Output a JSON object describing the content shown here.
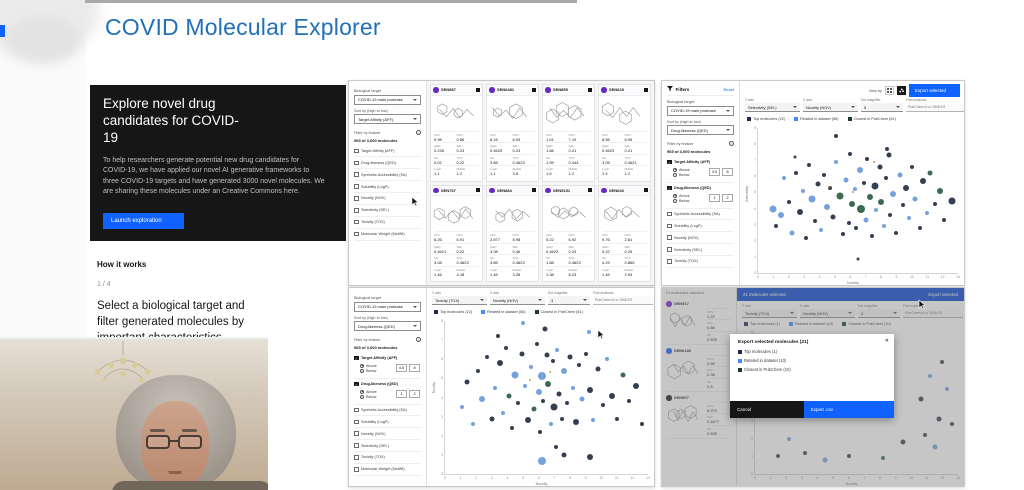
{
  "page": {
    "title": "COVID Molecular Explorer"
  },
  "hero": {
    "heading": "Explore novel drug candidates for COVID-19",
    "body": "To help researchers generate potential new drug candidates for COVID-19, we have applied our novel AI generative frameworks to three COVID-19 targets and have generated 3000 novel molecules. We are sharing these molecules under an Creative Commons here.",
    "button": "Launch exploration"
  },
  "how": {
    "title": "How it works",
    "step": "1 / 4",
    "text": "Select a biological target and filter generated molecules by important characteristics"
  },
  "labels": {
    "bio_target": "Biological target",
    "sort": "Sort by (high to low)",
    "filter_feature": "Filter by feature",
    "count": "965 of 3,000 molecules",
    "above": "Above",
    "below": "Below",
    "filters": "Filters",
    "reset": "Reset",
    "view_by": "View by",
    "export_selected": "Export selected",
    "y_axis": "Y axis",
    "x_axis": "X axis",
    "dot_mag": "Dot magnifier",
    "find": "Find molecule",
    "find_placeholder": "PubChem id or SMILES"
  },
  "stat_labels": [
    "AFF",
    "NOV",
    "QED",
    "SEL",
    "SA",
    "TOX",
    "LogP",
    "MolWt"
  ],
  "colors": {
    "accent": "#0f62fe",
    "title_blue": "#2170b9",
    "purple": "#6929c4",
    "bar_blue": "#0043ce"
  },
  "panelA": {
    "bio_value": "COVID-19 main protease",
    "sort_value": "Target Affinity (AFF)",
    "filters": [
      "Target Affinity (AFF)",
      "Drug-likeness (QED)",
      "Synthetic Accessibility (SA)",
      "Solubility (LogP)",
      "Novelty (NOV)",
      "Selectivity (SEL)",
      "Toxicity (TOX)",
      "Molecular Weight (MolWt)"
    ],
    "cards": [
      {
        "id": "GEN987",
        "vals": [
          "9.98",
          "0.86",
          "0.235",
          "0.23",
          "9.02",
          "0.22",
          "1.1",
          "1.2"
        ]
      },
      {
        "id": "GEN6481",
        "vals": [
          "8.16",
          "6.93",
          "0.4625",
          "0.23",
          "3.85",
          "0.4623",
          "1.1",
          "3.8"
        ]
      },
      {
        "id": "GEN855",
        "vals": [
          "1.51",
          "7.10",
          "1.88",
          "0.21",
          "1.99",
          "0.444",
          "1.5",
          "1.2"
        ]
      },
      {
        "id": "GEN628",
        "vals": [
          "8.56",
          "6.95",
          "0.4623",
          "0.21",
          "3.05",
          "0.4621",
          "1.4",
          "1.2"
        ]
      },
      {
        "id": "GEN757",
        "vals": [
          "8.26",
          "6.91",
          "0.4621",
          "0.22",
          "3.08",
          "0.4623",
          "1.46",
          "4.18"
        ]
      },
      {
        "id": "GEN884",
        "vals": [
          "2.877",
          "5.98",
          "3.08",
          "0.46",
          "3.85",
          "0.4623",
          "1.45",
          "3.28"
        ]
      },
      {
        "id": "GEN5151",
        "vals": [
          "5.22",
          "6.92",
          "0.4622",
          "0.23",
          "1.88",
          "0.4623",
          "1.38",
          "8.23"
        ]
      },
      {
        "id": "GEN643",
        "vals": [
          "9.76",
          "2.81",
          "0.22",
          "0.25",
          "4.29",
          "0.866",
          "1.45",
          "2.94"
        ]
      }
    ]
  },
  "panelB": {
    "bio_value": "COVID-19 main protease",
    "sort_value": "Drug-likeness (QED)",
    "checked_filters": [
      {
        "label": "Target Affinity (AFF)",
        "min": "4.5",
        "max": "8"
      },
      {
        "label": "Drug-likeness (QED)",
        "min": "1",
        "max": "2"
      }
    ],
    "unchecked_filters": [
      "Synthetic Accessibility (SA)",
      "Solubility (LogP)",
      "Novelty (NOV)",
      "Selectivity (SEL)",
      "Toxicity (TOX)"
    ],
    "controls": {
      "y": "Selectivity (SEL)",
      "x": "Novelty (NOV)",
      "mag": "5"
    },
    "legend": [
      {
        "label": "Top molecules (22)",
        "color": "#23264d"
      },
      {
        "label": "Related in dataset (56)",
        "color": "#4589ff"
      },
      {
        "label": "Closest in PubChem (61)",
        "color": "#173b2d"
      }
    ],
    "plot": {
      "type": "scatter",
      "ylabel": "Selectivity",
      "xlabel": "Novelty",
      "xticks": [
        0,
        1,
        2,
        3,
        4,
        5,
        6,
        7,
        8,
        9,
        10,
        11,
        12,
        13
      ],
      "yticks": [
        0,
        1,
        2,
        3,
        4,
        5,
        6,
        7,
        8,
        9
      ],
      "points": [
        [
          1.0,
          4.0,
          3.5,
          1
        ],
        [
          1.2,
          2.9,
          2,
          0
        ],
        [
          1.5,
          3.6,
          3,
          1
        ],
        [
          1.7,
          5.9,
          2,
          1
        ],
        [
          2.0,
          4.4,
          2,
          0
        ],
        [
          2.2,
          2.5,
          2.5,
          1
        ],
        [
          2.5,
          6.2,
          2,
          0
        ],
        [
          2.7,
          3.8,
          3,
          0
        ],
        [
          2.9,
          5.1,
          2,
          1
        ],
        [
          3.1,
          2.2,
          2,
          0
        ],
        [
          3.3,
          6.7,
          2,
          0
        ],
        [
          3.5,
          4.6,
          3.5,
          1
        ],
        [
          3.7,
          3.2,
          2,
          0
        ],
        [
          3.9,
          5.5,
          2.5,
          0
        ],
        [
          4.1,
          2.7,
          2,
          1
        ],
        [
          4.3,
          6.1,
          2,
          0
        ],
        [
          4.5,
          4.1,
          3,
          1
        ],
        [
          4.7,
          5.3,
          2,
          0
        ],
        [
          4.9,
          3.5,
          2.5,
          0
        ],
        [
          5.1,
          6.9,
          2,
          1
        ],
        [
          5.3,
          4.8,
          3.5,
          2
        ],
        [
          5.5,
          2.4,
          2,
          0
        ],
        [
          5.7,
          5.8,
          2.5,
          1
        ],
        [
          5.9,
          3.1,
          2,
          0
        ],
        [
          6.0,
          7.4,
          2,
          0
        ],
        [
          6.1,
          4.3,
          3,
          2
        ],
        [
          6.3,
          5.2,
          2,
          1
        ],
        [
          6.4,
          2.8,
          2,
          0
        ],
        [
          6.6,
          6.4,
          3,
          1
        ],
        [
          6.7,
          4.0,
          4,
          2
        ],
        [
          6.9,
          5.6,
          2,
          0
        ],
        [
          7.0,
          3.3,
          2.5,
          1
        ],
        [
          7.1,
          7.1,
          2,
          0
        ],
        [
          7.3,
          4.7,
          3,
          2
        ],
        [
          7.4,
          2.3,
          2,
          0
        ],
        [
          7.6,
          5.4,
          3.5,
          0
        ],
        [
          7.7,
          3.9,
          2,
          1
        ],
        [
          7.9,
          6.6,
          2.5,
          0
        ],
        [
          8.0,
          4.4,
          3,
          2
        ],
        [
          8.2,
          2.9,
          2,
          1
        ],
        [
          8.3,
          5.9,
          2,
          0
        ],
        [
          8.5,
          7.3,
          2.5,
          0
        ],
        [
          8.6,
          3.6,
          2,
          0
        ],
        [
          8.8,
          4.9,
          3,
          1
        ],
        [
          9.0,
          2.5,
          2,
          0
        ],
        [
          9.2,
          6.1,
          2.5,
          1
        ],
        [
          9.4,
          4.2,
          2,
          0
        ],
        [
          9.6,
          5.3,
          3,
          0
        ],
        [
          9.8,
          3.4,
          2,
          1
        ],
        [
          10.0,
          6.6,
          2,
          0
        ],
        [
          10.2,
          4.6,
          2.5,
          1
        ],
        [
          10.5,
          2.8,
          2,
          0
        ],
        [
          10.7,
          5.7,
          3,
          0
        ],
        [
          11.0,
          3.7,
          2,
          1
        ],
        [
          11.2,
          6.2,
          2.5,
          2
        ],
        [
          11.5,
          4.3,
          2,
          0
        ],
        [
          11.8,
          5.1,
          3,
          2
        ],
        [
          12.1,
          3.3,
          2,
          0
        ],
        [
          12.6,
          4.5,
          3.5,
          0
        ],
        [
          5.05,
          8.5,
          2,
          0
        ],
        [
          6.5,
          0.9,
          1.5,
          0
        ],
        [
          8.4,
          7.7,
          2,
          0
        ],
        [
          4.6,
          5.35,
          1,
          3
        ],
        [
          6.15,
          5.05,
          1,
          3
        ],
        [
          7.55,
          6.9,
          1,
          3
        ],
        [
          2.4,
          7.2,
          1.5,
          0
        ]
      ]
    }
  },
  "panelC": {
    "bio_value": "COVID-19 main protease",
    "sort_value": "Drug-likeness (QED)",
    "checked_filters": [
      {
        "label": "Target Affinity (AFF)",
        "min": "4.5",
        "max": "8"
      },
      {
        "label": "Drug-likeness (QED)",
        "min": "1",
        "max": "2"
      }
    ],
    "unchecked_filters": [
      "Synthetic Accessibility (SA)",
      "Solubility (LogP)",
      "Novelty (NOV)",
      "Selectivity (SEL)",
      "Toxicity (TOX)",
      "Molecular Weight (MolWt)"
    ],
    "controls": {
      "y": "Toxicity (TOX)",
      "x": "Novelty (NOV)",
      "mag": "3"
    },
    "legend": [
      {
        "label": "Top molecules (22)",
        "color": "#23264d"
      },
      {
        "label": "Related in dataset (56)",
        "color": "#4589ff"
      },
      {
        "label": "Closest in PubChem (61)",
        "color": "#173b2d"
      }
    ],
    "plot": {
      "type": "scatter",
      "ylabel": "Toxicity",
      "xlabel": "Novelty",
      "xticks": [
        0,
        1,
        2,
        3,
        4,
        5,
        6,
        7,
        8,
        9,
        10,
        11,
        12,
        13
      ],
      "yticks": [
        0,
        1,
        2,
        3,
        4,
        5,
        6,
        7,
        8
      ],
      "points": [
        [
          1.1,
          3.5,
          2,
          1
        ],
        [
          1.4,
          4.8,
          2.5,
          0
        ],
        [
          1.8,
          2.6,
          2,
          1
        ],
        [
          2.1,
          5.4,
          2,
          0
        ],
        [
          2.4,
          3.9,
          3,
          1
        ],
        [
          2.7,
          6.1,
          2,
          0
        ],
        [
          3.0,
          2.9,
          2.5,
          0
        ],
        [
          3.2,
          4.5,
          2,
          1
        ],
        [
          3.5,
          5.8,
          3,
          0
        ],
        [
          3.7,
          3.2,
          2,
          1
        ],
        [
          3.9,
          6.6,
          2,
          0
        ],
        [
          4.1,
          4.1,
          2.5,
          2
        ],
        [
          4.3,
          2.4,
          2,
          0
        ],
        [
          4.5,
          5.2,
          3.5,
          1
        ],
        [
          4.7,
          3.7,
          2,
          0
        ],
        [
          4.9,
          6.3,
          2.5,
          0
        ],
        [
          5.1,
          4.6,
          2,
          1
        ],
        [
          5.3,
          2.8,
          3,
          0
        ],
        [
          5.5,
          5.6,
          2,
          1
        ],
        [
          5.7,
          3.4,
          2.5,
          2
        ],
        [
          5.9,
          6.8,
          2,
          0
        ],
        [
          6.0,
          4.3,
          3,
          1
        ],
        [
          6.1,
          2.2,
          2,
          0
        ],
        [
          6.2,
          5.1,
          4,
          1
        ],
        [
          6.3,
          3.8,
          2,
          0
        ],
        [
          6.5,
          6.2,
          2.5,
          0
        ],
        [
          6.6,
          4.7,
          3,
          2
        ],
        [
          6.8,
          2.6,
          2,
          1
        ],
        [
          6.9,
          5.9,
          2,
          0
        ],
        [
          7.0,
          3.5,
          3.5,
          0
        ],
        [
          7.2,
          6.5,
          2,
          1
        ],
        [
          7.3,
          4.2,
          2.5,
          0
        ],
        [
          7.5,
          2.9,
          2,
          0
        ],
        [
          7.6,
          5.4,
          3,
          1
        ],
        [
          7.8,
          3.7,
          2,
          0
        ],
        [
          8.0,
          6.1,
          2.5,
          0
        ],
        [
          8.2,
          4.5,
          2,
          1
        ],
        [
          8.4,
          2.7,
          3,
          0
        ],
        [
          8.6,
          5.7,
          2,
          0
        ],
        [
          8.8,
          3.9,
          2.5,
          1
        ],
        [
          9.0,
          6.3,
          2,
          0
        ],
        [
          9.3,
          4.4,
          3,
          0
        ],
        [
          9.5,
          2.8,
          2,
          1
        ],
        [
          9.8,
          5.5,
          2.5,
          0
        ],
        [
          10.1,
          3.6,
          2,
          0
        ],
        [
          10.4,
          6.0,
          2,
          1
        ],
        [
          10.7,
          4.1,
          3,
          0
        ],
        [
          11.0,
          2.9,
          2,
          0
        ],
        [
          11.4,
          5.2,
          2.5,
          2
        ],
        [
          11.8,
          3.8,
          2,
          0
        ],
        [
          12.2,
          4.6,
          3,
          0
        ],
        [
          12.6,
          2.6,
          2,
          0
        ],
        [
          6.4,
          7.6,
          2.5,
          0
        ],
        [
          5.0,
          7.9,
          2,
          1
        ],
        [
          7.1,
          1.4,
          2,
          0
        ],
        [
          9.2,
          7.4,
          2,
          1
        ],
        [
          3.4,
          7.2,
          2,
          0
        ],
        [
          6.2,
          0.7,
          4,
          1
        ],
        [
          7.6,
          1.0,
          2.5,
          0
        ],
        [
          9.3,
          0.9,
          3,
          0
        ],
        [
          5.45,
          4.9,
          1,
          3
        ],
        [
          6.75,
          5.35,
          1,
          3
        ]
      ]
    }
  },
  "panelD": {
    "sidebar_note": "21 molecules selected",
    "bar_title": "21 molecules selected",
    "controls": {
      "y": "Toxicity (TOX)",
      "x": "Novelty (NOV)",
      "mag": "3"
    },
    "legend": [
      {
        "label": "Top molecules (1)",
        "color": "#23264d"
      },
      {
        "label": "Related in dataset (10)",
        "color": "#4589ff"
      },
      {
        "label": "Closest in PubChem (10)",
        "color": "#173b2d"
      }
    ],
    "molecules": [
      {
        "id": "GEN517",
        "color": "#6929c4",
        "stats": [
          [
            "NOV",
            "1.22"
          ],
          [
            "AFF",
            "0.88"
          ],
          [
            "SA",
            "0.835"
          ]
        ]
      },
      {
        "id": "GEN6186",
        "color": "#0f62fe",
        "stats": [
          [
            "NOV",
            "0.56"
          ],
          [
            "AFF",
            "0.38"
          ],
          [
            "SA",
            "2.8"
          ]
        ]
      },
      {
        "id": "GEN507",
        "color": "#161616",
        "stats": [
          [
            "NOV",
            "6.973"
          ],
          [
            "AFF",
            "0.4677"
          ],
          [
            "SA",
            "0.835"
          ]
        ]
      }
    ],
    "modal": {
      "title": "Export selected molecules (21)",
      "items": [
        {
          "label": "Top molecules (1)",
          "color": "#23264d"
        },
        {
          "label": "Related in dataset (10)",
          "color": "#4589ff"
        },
        {
          "label": "Closest in PubChem (10)",
          "color": "#173b2d"
        }
      ],
      "cancel": "Cancel",
      "confirm": "Export .csv"
    },
    "plot": {
      "type": "scatter",
      "ylabel": "Toxicity",
      "xlabel": "Novelty",
      "xticks": [
        0,
        1,
        2,
        3,
        4,
        5,
        6,
        7,
        8,
        9,
        10,
        11,
        12,
        13
      ],
      "yticks": [
        0,
        1,
        2,
        3,
        4,
        5,
        6,
        7,
        8
      ],
      "points": [
        [
          10.6,
          4.2,
          2.5,
          0
        ],
        [
          11.2,
          5.5,
          2,
          1
        ],
        [
          11.8,
          3.1,
          2.5,
          0
        ],
        [
          12.3,
          4.8,
          2,
          1
        ],
        [
          10.9,
          2.2,
          2,
          0
        ],
        [
          12.0,
          6.3,
          2,
          0
        ],
        [
          11.5,
          1.5,
          2.5,
          1
        ],
        [
          12.6,
          2.8,
          2,
          0
        ],
        [
          3.2,
          1.2,
          2,
          0
        ],
        [
          4.5,
          0.8,
          2.5,
          1
        ],
        [
          6.0,
          1.0,
          2,
          0
        ],
        [
          8.2,
          0.9,
          2,
          2
        ],
        [
          2.2,
          2.0,
          2,
          1
        ],
        [
          1.5,
          1.0,
          2,
          0
        ],
        [
          9.5,
          1.8,
          2.5,
          0
        ]
      ]
    }
  }
}
